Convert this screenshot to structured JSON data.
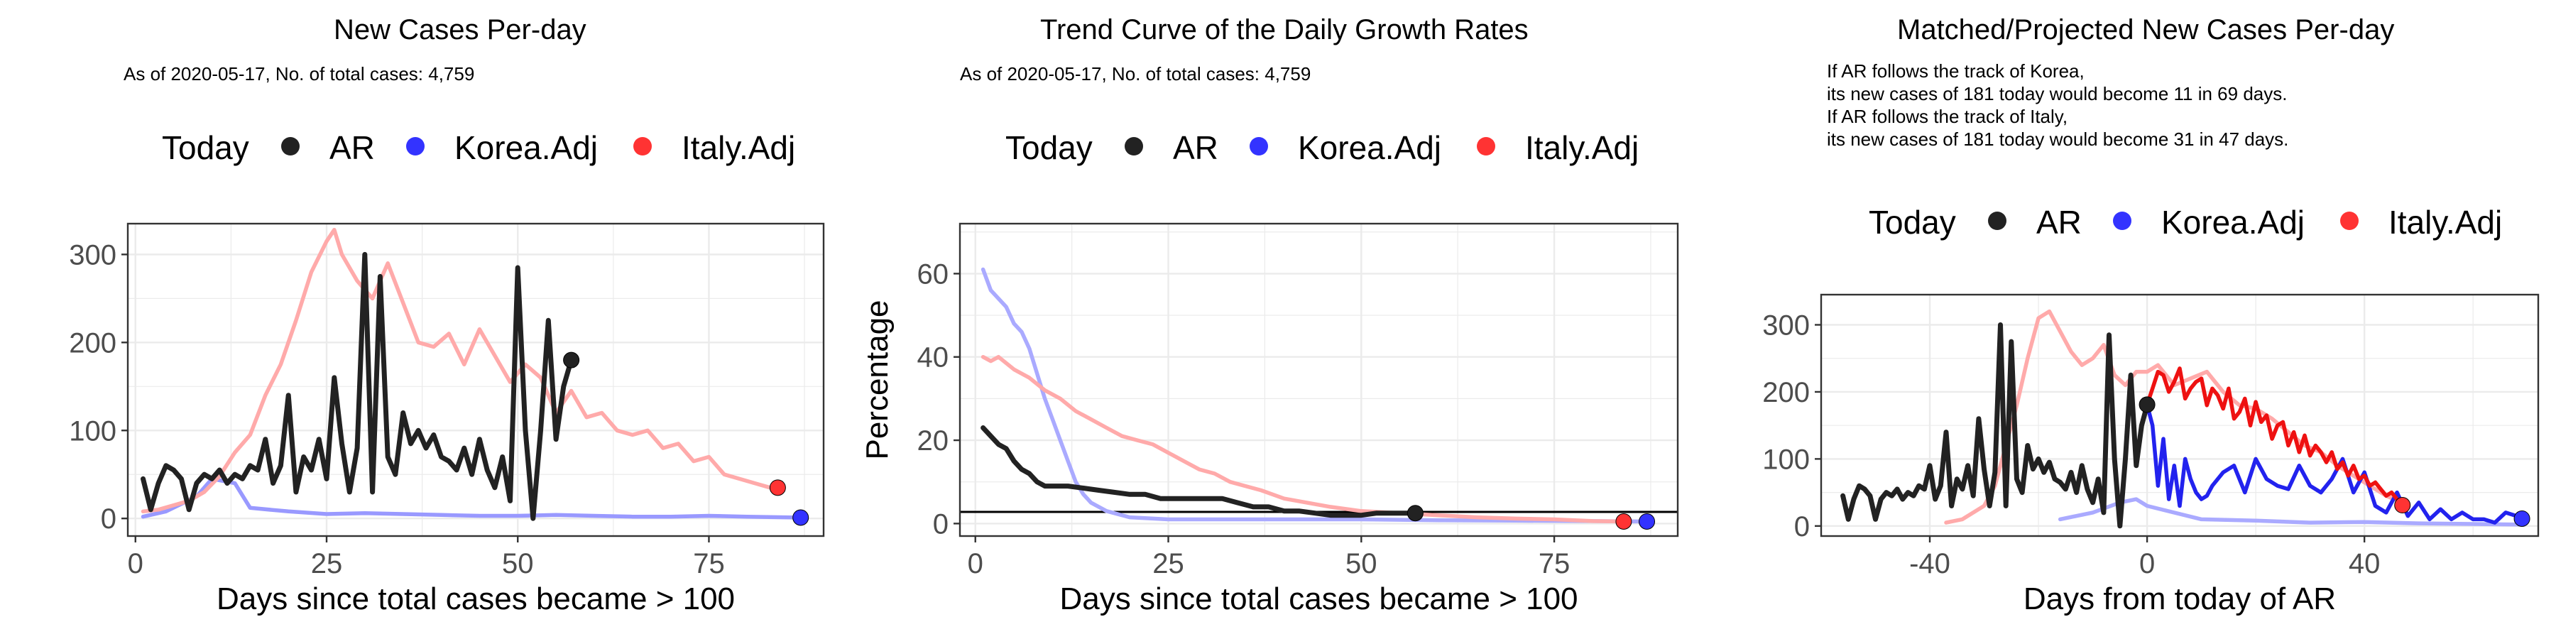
{
  "legend": {
    "title": "Today",
    "items": [
      {
        "label": "AR",
        "color": "#222222"
      },
      {
        "label": "Korea.Adj",
        "color": "#3333ff"
      },
      {
        "label": "Italy.Adj",
        "color": "#ff3333"
      }
    ]
  },
  "panels": [
    {
      "title": "New Cases Per-day",
      "subtitle_lines": [
        "As of 2020-05-17, No. of total cases: 4,759"
      ]
    },
    {
      "title": "Trend Curve of the Daily Growth Rates",
      "subtitle_lines": [
        "As of 2020-05-17, No. of total cases: 4,759"
      ]
    },
    {
      "title": "Matched/Projected New Cases Per-day",
      "subtitle_lines": [
        "If AR follows the track of Korea,",
        "its new cases of 181 today would become 11 in 69 days.",
        "If AR follows the track of Italy,",
        "its new cases of 181 today would become 31 in 47 days."
      ]
    }
  ],
  "chart_data": [
    {
      "type": "line",
      "title": "New Cases Per-day",
      "subtitle": "As of 2020-05-17, No. of total cases: 4,759",
      "xlabel": "Days since total cases became > 100",
      "ylabel": "",
      "xlim": [
        -1,
        90
      ],
      "ylim": [
        -20,
        335
      ],
      "xticks": [
        0,
        25,
        50,
        75
      ],
      "yticks": [
        0,
        100,
        200,
        300
      ],
      "grid": true,
      "legend_position": "top",
      "series": [
        {
          "name": "Korea.Adj",
          "color": "#9999ff",
          "x": [
            1,
            4,
            8,
            10,
            13,
            15,
            20,
            25,
            30,
            35,
            40,
            45,
            50,
            55,
            60,
            65,
            70,
            75,
            80,
            87
          ],
          "y": [
            2,
            8,
            25,
            45,
            40,
            12,
            8,
            5,
            6,
            5,
            4,
            3,
            3,
            4,
            3,
            2,
            2,
            3,
            2,
            1
          ]
        },
        {
          "name": "Italy.Adj",
          "color": "#ffaaaa",
          "x": [
            1,
            3,
            5,
            7,
            9,
            11,
            13,
            15,
            17,
            19,
            21,
            23,
            25,
            26,
            27,
            29,
            31,
            33,
            35,
            37,
            39,
            41,
            43,
            45,
            47,
            49,
            51,
            53,
            55,
            57,
            59,
            61,
            63,
            65,
            67,
            69,
            71,
            73,
            75,
            77,
            79,
            81,
            83
          ],
          "y": [
            8,
            10,
            15,
            20,
            30,
            48,
            75,
            95,
            140,
            175,
            225,
            280,
            315,
            328,
            300,
            270,
            250,
            290,
            245,
            200,
            195,
            210,
            175,
            215,
            185,
            155,
            175,
            160,
            120,
            145,
            115,
            120,
            100,
            95,
            100,
            80,
            85,
            65,
            70,
            50,
            45,
            40,
            35
          ]
        },
        {
          "name": "AR",
          "color": "#222222",
          "x": [
            1,
            2,
            3,
            4,
            5,
            6,
            7,
            8,
            9,
            10,
            11,
            12,
            13,
            14,
            15,
            16,
            17,
            18,
            19,
            20,
            21,
            22,
            23,
            24,
            25,
            26,
            27,
            28,
            29,
            30,
            31,
            32,
            33,
            34,
            35,
            36,
            37,
            38,
            39,
            40,
            41,
            42,
            43,
            44,
            45,
            46,
            47,
            48,
            49,
            50,
            51,
            52,
            53,
            54,
            55,
            56,
            57
          ],
          "y": [
            45,
            10,
            40,
            60,
            55,
            45,
            10,
            40,
            50,
            45,
            55,
            40,
            50,
            45,
            60,
            55,
            90,
            40,
            60,
            140,
            30,
            70,
            55,
            90,
            45,
            160,
            85,
            30,
            80,
            300,
            30,
            275,
            70,
            50,
            120,
            85,
            100,
            80,
            95,
            70,
            65,
            55,
            80,
            50,
            90,
            55,
            35,
            70,
            20,
            285,
            100,
            0,
            100,
            225,
            90,
            150,
            180
          ]
        }
      ],
      "today_points": [
        {
          "series": "AR",
          "x": 57,
          "y": 180
        },
        {
          "series": "Korea.Adj",
          "x": 87,
          "y": 1
        },
        {
          "series": "Italy.Adj",
          "x": 84,
          "y": 35
        }
      ]
    },
    {
      "type": "line",
      "title": "Trend Curve of the Daily Growth Rates",
      "subtitle": "As of 2020-05-17, No. of total cases: 4,759",
      "xlabel": "Days since total cases became > 100",
      "ylabel": "Percentage",
      "xlim": [
        -2,
        91
      ],
      "ylim": [
        -3,
        72
      ],
      "xticks": [
        0,
        25,
        50,
        75
      ],
      "yticks": [
        0,
        20,
        40,
        60
      ],
      "grid": true,
      "legend_position": "top",
      "reference_line_y": 2.8,
      "series": [
        {
          "name": "Korea.Adj",
          "color": "#aaaaff",
          "x": [
            1,
            2,
            3,
            4,
            5,
            6,
            7,
            8,
            9,
            10,
            11,
            12,
            13,
            14,
            15,
            17,
            20,
            25,
            30,
            35,
            40,
            50,
            60,
            70,
            80,
            87
          ],
          "y": [
            61,
            56,
            54,
            52,
            48,
            46,
            42,
            36,
            30,
            25,
            20,
            15,
            10,
            7,
            5,
            3,
            1.5,
            1,
            1,
            1,
            1,
            1,
            0.8,
            0.7,
            0.6,
            0.5
          ]
        },
        {
          "name": "Italy.Adj",
          "color": "#ffaaaa",
          "x": [
            1,
            2,
            3,
            5,
            7,
            9,
            11,
            13,
            15,
            17,
            19,
            21,
            23,
            25,
            27,
            29,
            31,
            33,
            35,
            37,
            40,
            43,
            46,
            50,
            55,
            60,
            65,
            70,
            75,
            80,
            84
          ],
          "y": [
            40,
            39,
            40,
            37,
            35,
            32,
            30,
            27,
            25,
            23,
            21,
            20,
            19,
            17,
            15,
            13,
            12,
            10,
            9,
            8,
            6,
            5,
            4,
            3,
            2.5,
            2,
            1.5,
            1.2,
            1,
            0.6,
            0.5
          ]
        },
        {
          "name": "AR",
          "color": "#222222",
          "x": [
            1,
            2,
            3,
            4,
            5,
            6,
            7,
            8,
            9,
            10,
            11,
            12,
            14,
            16,
            18,
            20,
            22,
            24,
            26,
            28,
            30,
            32,
            34,
            36,
            38,
            40,
            42,
            44,
            46,
            48,
            50,
            52,
            54,
            57
          ],
          "y": [
            23,
            21,
            19,
            18,
            15,
            13,
            12,
            10,
            9,
            9,
            9,
            9,
            8.5,
            8,
            7.5,
            7,
            7,
            6,
            6,
            6,
            6,
            6,
            5,
            4,
            4,
            3,
            3,
            2.5,
            2,
            2,
            2,
            2.5,
            2.5,
            2.5
          ]
        }
      ],
      "today_points": [
        {
          "series": "AR",
          "x": 57,
          "y": 2.5
        },
        {
          "series": "Korea.Adj",
          "x": 87,
          "y": 0.5
        },
        {
          "series": "Italy.Adj",
          "x": 84,
          "y": 0.5
        }
      ]
    },
    {
      "type": "line",
      "title": "Matched/Projected New Cases Per-day",
      "subtitle": "If AR follows the track of Korea, its new cases of 181 today would become 11 in 69 days. If AR follows the track of Italy, its new cases of 181 today would become 31 in 47 days.",
      "xlabel": "Days from today of AR",
      "ylabel": "",
      "xlim": [
        -60,
        72
      ],
      "ylim": [
        -15,
        345
      ],
      "xticks": [
        -40,
        0,
        40
      ],
      "yticks": [
        0,
        100,
        200,
        300
      ],
      "grid": true,
      "legend_position": "top",
      "series": [
        {
          "name": "Korea.Adj",
          "color": "#aaaaff",
          "x": [
            -16,
            -10,
            -5,
            -2,
            0,
            10,
            20,
            30,
            40,
            50,
            60,
            69
          ],
          "y": [
            10,
            20,
            35,
            40,
            30,
            10,
            8,
            5,
            6,
            4,
            3,
            2
          ]
        },
        {
          "name": "Italy.Adj",
          "color": "#ffaaaa",
          "x": [
            -37,
            -34,
            -30,
            -28,
            -26,
            -24,
            -22,
            -20,
            -18,
            -16,
            -14,
            -12,
            -10,
            -8,
            -6,
            -4,
            -2,
            0,
            2,
            5,
            8,
            11,
            14,
            17,
            20,
            23,
            26,
            29,
            32,
            35,
            38,
            41,
            44,
            47
          ],
          "y": [
            5,
            10,
            30,
            60,
            120,
            180,
            250,
            310,
            320,
            290,
            260,
            240,
            250,
            270,
            225,
            210,
            230,
            230,
            240,
            210,
            220,
            230,
            200,
            180,
            175,
            160,
            140,
            120,
            110,
            90,
            75,
            60,
            45,
            35
          ]
        },
        {
          "name": "AR",
          "color": "#222222",
          "x": [
            -56,
            -55,
            -54,
            -53,
            -52,
            -51,
            -50,
            -49,
            -48,
            -47,
            -46,
            -45,
            -44,
            -43,
            -42,
            -41,
            -40,
            -39,
            -38,
            -37,
            -36,
            -35,
            -34,
            -33,
            -32,
            -31,
            -30,
            -29,
            -28,
            -27,
            -26,
            -25,
            -24,
            -23,
            -22,
            -21,
            -20,
            -19,
            -18,
            -17,
            -16,
            -15,
            -14,
            -13,
            -12,
            -11,
            -10,
            -9,
            -8,
            -7,
            -6,
            -5,
            -4,
            -3,
            -2,
            -1,
            0
          ],
          "y": [
            45,
            10,
            40,
            60,
            55,
            45,
            10,
            40,
            50,
            45,
            55,
            40,
            50,
            45,
            60,
            55,
            90,
            40,
            60,
            140,
            30,
            70,
            55,
            90,
            45,
            160,
            85,
            30,
            80,
            300,
            30,
            275,
            70,
            50,
            120,
            85,
            100,
            80,
            95,
            70,
            65,
            55,
            80,
            50,
            90,
            55,
            35,
            70,
            20,
            285,
            100,
            0,
            100,
            225,
            90,
            150,
            180
          ]
        },
        {
          "name": "Korea.Adj (projected)",
          "color": "#2222ee",
          "x": [
            0,
            1,
            2,
            3,
            4,
            5,
            6,
            7,
            8,
            9,
            10,
            11,
            12,
            14,
            16,
            18,
            20,
            22,
            24,
            26,
            28,
            30,
            32,
            34,
            36,
            38,
            40,
            42,
            44,
            46,
            48,
            50,
            52,
            54,
            56,
            58,
            60,
            62,
            64,
            66,
            68,
            69
          ],
          "y": [
            181,
            150,
            60,
            130,
            40,
            90,
            30,
            100,
            70,
            50,
            40,
            45,
            60,
            80,
            90,
            50,
            100,
            70,
            60,
            55,
            90,
            60,
            50,
            70,
            100,
            50,
            80,
            30,
            20,
            50,
            15,
            35,
            10,
            25,
            10,
            20,
            10,
            10,
            5,
            20,
            15,
            11
          ]
        },
        {
          "name": "Italy.Adj (projected)",
          "color": "#ee1111",
          "x": [
            0,
            1,
            2,
            3,
            4,
            5,
            6,
            7,
            8,
            9,
            10,
            11,
            12,
            13,
            14,
            15,
            16,
            17,
            18,
            19,
            20,
            21,
            22,
            23,
            24,
            25,
            26,
            27,
            28,
            29,
            30,
            31,
            32,
            33,
            34,
            35,
            36,
            37,
            38,
            39,
            40,
            41,
            42,
            43,
            44,
            45,
            46,
            47
          ],
          "y": [
            181,
            205,
            230,
            225,
            200,
            215,
            235,
            190,
            205,
            215,
            220,
            180,
            205,
            195,
            175,
            205,
            160,
            170,
            190,
            150,
            185,
            155,
            165,
            130,
            150,
            155,
            120,
            140,
            110,
            135,
            105,
            120,
            110,
            95,
            110,
            85,
            95,
            75,
            90,
            70,
            75,
            60,
            65,
            55,
            45,
            50,
            40,
            31
          ]
        }
      ],
      "today_points": [
        {
          "series": "AR",
          "x": 0,
          "y": 181
        },
        {
          "series": "Korea.Adj (projected)",
          "x": 69,
          "y": 11
        },
        {
          "series": "Italy.Adj (projected)",
          "x": 47,
          "y": 31
        }
      ]
    }
  ]
}
